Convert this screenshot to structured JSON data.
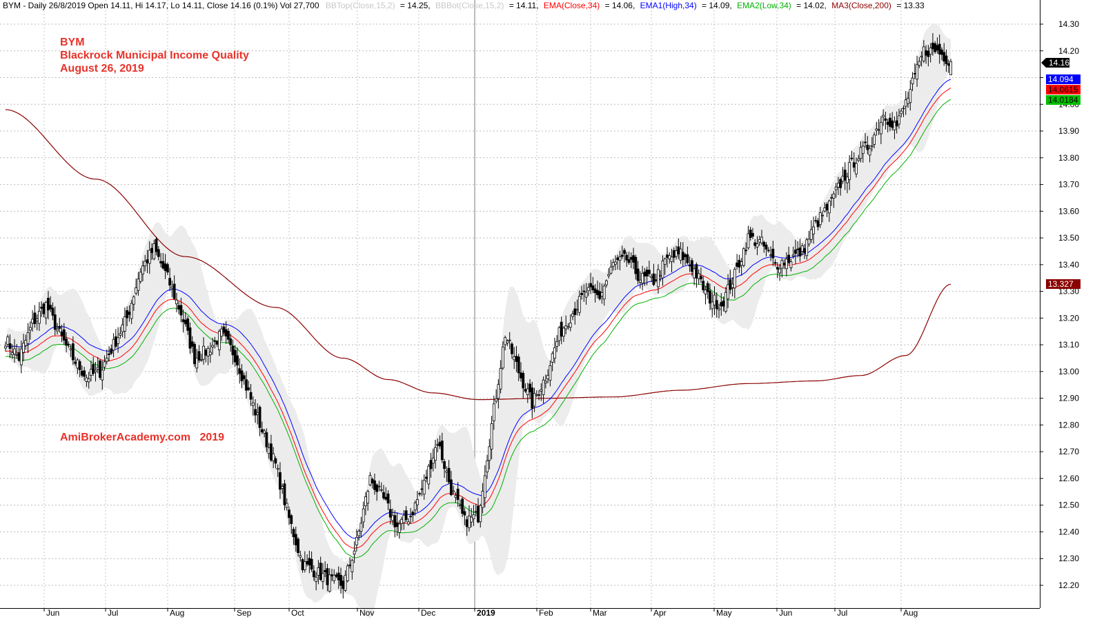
{
  "chart_data": {
    "type": "candlestick",
    "symbol": "BYM",
    "header": {
      "prefix": "BYM - Daily 26/8/2019 Open 14.11, Hi 14.17, Lo 14.11, Close 14.16 (0.1%) Vol 27,700",
      "bbtop_label": "BBTop(Close,15,2)",
      "bbtop_value": "= 14.25,",
      "bbbot_label": "BBBot(Close,15,2)",
      "bbbot_value": "= 14.11,",
      "ema_label": "EMA(Close,34)",
      "ema_value": "= 14.06,",
      "ema1_label": "EMA1(High,34)",
      "ema1_value": "= 14.09,",
      "ema2_label": "EMA2(Low,34)",
      "ema2_value": "= 14.02,",
      "ma3_label": "MA3(Close,200)",
      "ma3_value": "= 13.33"
    },
    "annotations": {
      "ticker": "BYM",
      "name": "Blackrock Municipal Income Quality",
      "date": "August 26, 2019",
      "watermark": "AmiBrokerAcademy.com   2019"
    },
    "y_ticks": [
      "14.30",
      "14.20",
      "14.10",
      "14.00",
      "13.90",
      "13.80",
      "13.70",
      "13.60",
      "13.50",
      "13.40",
      "13.30",
      "13.20",
      "13.10",
      "13.00",
      "12.90",
      "12.80",
      "12.70",
      "12.60",
      "12.50",
      "12.40",
      "12.30",
      "12.20"
    ],
    "ylim": [
      12.12,
      14.32
    ],
    "x_months": [
      "Jun",
      "Jul",
      "Aug",
      "Sep",
      "Oct",
      "Nov",
      "Dec",
      "2019",
      "Feb",
      "Mar",
      "Apr",
      "May",
      "Jun",
      "Jul",
      "Aug"
    ],
    "last_values": {
      "close": "14.16",
      "ema1_high": "14.094",
      "ema_close": "14.0615",
      "ema2_low": "14.0184",
      "ma200": "13.327"
    },
    "colors": {
      "ema_close": "#ff0000",
      "ema1_high": "#0000ff",
      "ema2_low": "#00b000",
      "ma200": "#8b0000",
      "bb_fill": "#ececec",
      "header_gray": "#c8c8c8",
      "annotation": "#e8322a"
    },
    "close_anchors": [
      [
        0,
        13.12
      ],
      [
        6,
        13.05
      ],
      [
        12,
        13.18
      ],
      [
        18,
        13.25
      ],
      [
        24,
        13.14
      ],
      [
        30,
        13.05
      ],
      [
        36,
        12.98
      ],
      [
        42,
        13.0
      ],
      [
        48,
        13.1
      ],
      [
        54,
        13.2
      ],
      [
        60,
        13.38
      ],
      [
        66,
        13.46
      ],
      [
        72,
        13.35
      ],
      [
        78,
        13.22
      ],
      [
        84,
        13.05
      ],
      [
        90,
        13.08
      ],
      [
        96,
        13.14
      ],
      [
        102,
        13.06
      ],
      [
        108,
        12.92
      ],
      [
        114,
        12.78
      ],
      [
        120,
        12.65
      ],
      [
        126,
        12.45
      ],
      [
        132,
        12.28
      ],
      [
        138,
        12.25
      ],
      [
        144,
        12.22
      ],
      [
        150,
        12.2
      ],
      [
        156,
        12.36
      ],
      [
        162,
        12.6
      ],
      [
        168,
        12.52
      ],
      [
        174,
        12.42
      ],
      [
        180,
        12.46
      ],
      [
        186,
        12.58
      ],
      [
        192,
        12.74
      ],
      [
        198,
        12.56
      ],
      [
        204,
        12.44
      ],
      [
        210,
        12.46
      ],
      [
        216,
        12.8
      ],
      [
        222,
        13.14
      ],
      [
        228,
        13.0
      ],
      [
        234,
        12.88
      ],
      [
        240,
        12.98
      ],
      [
        246,
        13.14
      ],
      [
        252,
        13.22
      ],
      [
        258,
        13.3
      ],
      [
        264,
        13.28
      ],
      [
        270,
        13.4
      ],
      [
        276,
        13.42
      ],
      [
        282,
        13.35
      ],
      [
        288,
        13.34
      ],
      [
        294,
        13.42
      ],
      [
        300,
        13.44
      ],
      [
        306,
        13.38
      ],
      [
        312,
        13.28
      ],
      [
        318,
        13.25
      ],
      [
        324,
        13.36
      ],
      [
        330,
        13.5
      ],
      [
        336,
        13.48
      ],
      [
        342,
        13.4
      ],
      [
        348,
        13.42
      ],
      [
        354,
        13.45
      ],
      [
        360,
        13.55
      ],
      [
        366,
        13.62
      ],
      [
        372,
        13.72
      ],
      [
        378,
        13.8
      ],
      [
        384,
        13.85
      ],
      [
        390,
        13.96
      ],
      [
        396,
        13.92
      ],
      [
        402,
        14.05
      ],
      [
        408,
        14.2
      ],
      [
        414,
        14.2
      ],
      [
        420,
        14.16
      ]
    ]
  }
}
